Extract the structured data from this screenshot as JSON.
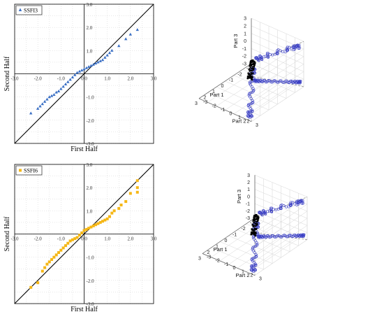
{
  "chart_data": [
    {
      "type": "scatter",
      "legend": "SSFI3",
      "xlabel": "First Half",
      "ylabel": "Second Half",
      "xlim": [
        -3,
        3
      ],
      "ylim": [
        -3,
        3
      ],
      "xticks": [
        "-3.0",
        "-2.0",
        "-1.0",
        "0.0",
        "1.0",
        "2.0",
        "3.0"
      ],
      "yticks": [
        "3.0",
        "2.0",
        "1.0",
        "0.0",
        "-1.0",
        "-2.0",
        "-3.0"
      ],
      "marker": "triangle",
      "color": "#3a6fc4",
      "reference_line": "y = x",
      "x": [
        -2.3,
        -2.0,
        -1.9,
        -1.8,
        -1.7,
        -1.6,
        -1.5,
        -1.4,
        -1.3,
        -1.2,
        -1.1,
        -1.0,
        -0.9,
        -0.8,
        -0.7,
        -0.6,
        -0.5,
        -0.4,
        -0.3,
        -0.2,
        -0.1,
        0.0,
        0.1,
        0.2,
        0.3,
        0.4,
        0.5,
        0.6,
        0.7,
        0.8,
        0.9,
        1.0,
        1.1,
        1.2,
        1.5,
        1.8,
        2.0,
        2.3
      ],
      "y": [
        -1.7,
        -1.5,
        -1.4,
        -1.3,
        -1.2,
        -1.1,
        -1.0,
        -0.95,
        -0.9,
        -0.8,
        -0.75,
        -0.65,
        -0.55,
        -0.45,
        -0.35,
        -0.25,
        -0.15,
        -0.05,
        0.05,
        0.1,
        0.15,
        0.2,
        0.25,
        0.3,
        0.35,
        0.4,
        0.45,
        0.5,
        0.55,
        0.6,
        0.7,
        0.8,
        0.9,
        1.0,
        1.2,
        1.5,
        1.7,
        1.9
      ]
    },
    {
      "type": "scatter3d",
      "xlabel": "Part 1",
      "ylabel": "Part 2",
      "zlabel": "Part 3",
      "ticks": [
        "-3",
        "-2",
        "-1",
        "0",
        "1",
        "2",
        "3"
      ]
    },
    {
      "type": "scatter",
      "legend": "SSFI6",
      "xlabel": "First Half",
      "ylabel": "Second Half",
      "xlim": [
        -3,
        3
      ],
      "ylim": [
        -3,
        3
      ],
      "xticks": [
        "-3.0",
        "-2.0",
        "-1.0",
        "0.0",
        "1.0",
        "2.0",
        "3.0"
      ],
      "yticks": [
        "3.0",
        "2.0",
        "1.0",
        "0.0",
        "-1.0",
        "-2.0",
        "-3.0"
      ],
      "marker": "square",
      "color": "#f5b716",
      "reference_line": "y = x",
      "x": [
        -2.3,
        -2.0,
        -1.8,
        -1.7,
        -1.6,
        -1.5,
        -1.4,
        -1.3,
        -1.2,
        -1.1,
        -1.0,
        -0.9,
        -0.8,
        -0.7,
        -0.6,
        -0.5,
        -0.4,
        -0.3,
        -0.2,
        -0.1,
        0.0,
        0.1,
        0.2,
        0.3,
        0.4,
        0.5,
        0.6,
        0.7,
        0.8,
        0.9,
        1.0,
        1.1,
        1.2,
        1.3,
        1.5,
        1.6,
        1.8,
        2.0,
        2.3,
        2.3,
        2.3
      ],
      "y": [
        -2.3,
        -2.1,
        -1.6,
        -1.45,
        -1.3,
        -1.2,
        -1.1,
        -1.0,
        -0.9,
        -0.8,
        -0.7,
        -0.6,
        -0.5,
        -0.4,
        -0.3,
        -0.25,
        -0.2,
        -0.15,
        -0.05,
        0.05,
        0.15,
        0.2,
        0.25,
        0.3,
        0.35,
        0.4,
        0.45,
        0.5,
        0.55,
        0.6,
        0.65,
        0.75,
        0.9,
        1.0,
        1.1,
        1.25,
        1.4,
        1.75,
        1.8,
        2.0,
        2.3
      ]
    },
    {
      "type": "scatter3d",
      "xlabel": "Part 1",
      "ylabel": "Part 2",
      "zlabel": "Part 3",
      "ticks": [
        "-3",
        "-2",
        "-1",
        "0",
        "1",
        "2",
        "3"
      ]
    }
  ]
}
